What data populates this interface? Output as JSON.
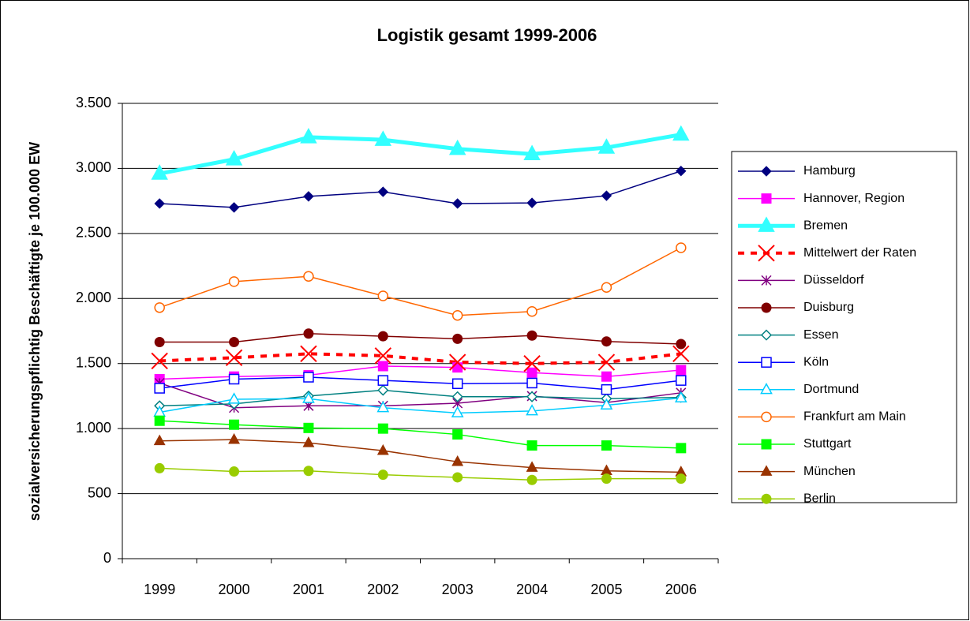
{
  "chart_data": {
    "type": "line",
    "title": "Logistik gesamt 1999-2006",
    "y_label": "sozialversicherungspflichtig Beschäftigte je 100.000 EW",
    "categories": [
      "1999",
      "2000",
      "2001",
      "2002",
      "2003",
      "2004",
      "2005",
      "2006"
    ],
    "ylim": [
      0,
      3500
    ],
    "yticks": [
      0,
      500,
      {
        "value": 1000,
        "label": "1.000"
      },
      {
        "value": 1500,
        "label": "1.500"
      },
      {
        "value": 2000,
        "label": "2.000"
      },
      {
        "value": 2500,
        "label": "2.500"
      },
      {
        "value": 3000,
        "label": "3.000"
      },
      {
        "value": 3500,
        "label": "3.500"
      }
    ],
    "grid": true,
    "legend": "right",
    "series": [
      {
        "name": "Hamburg",
        "color": "#000080",
        "marker": "diamond",
        "values": [
          2730,
          2700,
          2785,
          2820,
          2730,
          2735,
          2790,
          2980
        ]
      },
      {
        "name": "Hannover, Region",
        "color": "#ff00ff",
        "marker": "square",
        "values": [
          1380,
          1400,
          1410,
          1480,
          1470,
          1430,
          1400,
          1450
        ]
      },
      {
        "name": "Bremen",
        "color": "#33ffff",
        "marker": "triangle",
        "width": 5,
        "values": [
          2960,
          3070,
          3240,
          3220,
          3150,
          3110,
          3160,
          3260
        ]
      },
      {
        "name": "Mittelwert der Raten",
        "color": "#ff0000",
        "marker": "x",
        "dash": true,
        "width": 4,
        "values": [
          1520,
          1545,
          1575,
          1560,
          1510,
          1500,
          1510,
          1575
        ]
      },
      {
        "name": "Düsseldorf",
        "color": "#800080",
        "marker": "asterisk",
        "values": [
          1350,
          1160,
          1175,
          1175,
          1195,
          1250,
          1200,
          1275
        ]
      },
      {
        "name": "Duisburg",
        "color": "#800000",
        "marker": "circle",
        "values": [
          1665,
          1665,
          1730,
          1710,
          1690,
          1715,
          1670,
          1650
        ]
      },
      {
        "name": "Essen",
        "color": "#008080",
        "marker": "diamond-open",
        "values": [
          1175,
          1190,
          1250,
          1295,
          1245,
          1245,
          1230,
          1240
        ]
      },
      {
        "name": "Köln",
        "color": "#0000ff",
        "marker": "square-open",
        "values": [
          1310,
          1380,
          1395,
          1370,
          1345,
          1350,
          1300,
          1370
        ]
      },
      {
        "name": "Dortmund",
        "color": "#00ccff",
        "marker": "triangle-open",
        "values": [
          1125,
          1225,
          1230,
          1160,
          1120,
          1135,
          1180,
          1235
        ]
      },
      {
        "name": "Frankfurt am Main",
        "color": "#ff6600",
        "marker": "circle-open",
        "values": [
          1930,
          2130,
          2170,
          2020,
          1870,
          1900,
          2085,
          2390
        ]
      },
      {
        "name": "Stuttgart",
        "color": "#00ff00",
        "marker": "square",
        "values": [
          1060,
          1030,
          1005,
          1000,
          955,
          870,
          870,
          850
        ]
      },
      {
        "name": "München",
        "color": "#993300",
        "marker": "triangle",
        "values": [
          905,
          915,
          890,
          830,
          745,
          700,
          675,
          665
        ]
      },
      {
        "name": "Berlin",
        "color": "#99cc00",
        "marker": "circle",
        "values": [
          695,
          670,
          675,
          645,
          625,
          605,
          615,
          615
        ]
      }
    ]
  }
}
